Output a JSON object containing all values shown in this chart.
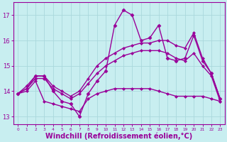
{
  "xlabel": "Windchill (Refroidissement éolien,°C)",
  "xlabel_fontsize": 7.0,
  "background_color": "#c8eef0",
  "grid_color": "#aad8dc",
  "line_color": "#990099",
  "xlim": [
    -0.5,
    23.5
  ],
  "ylim": [
    12.7,
    17.5
  ],
  "xticks": [
    0,
    1,
    2,
    3,
    4,
    5,
    6,
    7,
    8,
    9,
    10,
    11,
    12,
    13,
    14,
    15,
    16,
    17,
    18,
    19,
    20,
    21,
    22,
    23
  ],
  "yticks": [
    13,
    14,
    15,
    16,
    17
  ],
  "series": [
    {
      "x": [
        0,
        1,
        2,
        3,
        4,
        5,
        6,
        7,
        8,
        9,
        10,
        11,
        12,
        13,
        14,
        15,
        16,
        17,
        18,
        19,
        20,
        21,
        22,
        23
      ],
      "y": [
        13.9,
        14.2,
        14.6,
        14.6,
        14.0,
        13.6,
        13.5,
        13.0,
        13.9,
        14.4,
        14.8,
        16.6,
        17.2,
        17.0,
        16.0,
        16.1,
        16.6,
        15.3,
        15.2,
        15.3,
        16.2,
        15.2,
        14.7,
        13.7
      ],
      "marker": "D",
      "markersize": 2.5,
      "linewidth": 1.0
    },
    {
      "x": [
        0,
        1,
        2,
        3,
        4,
        5,
        6,
        7,
        8,
        9,
        10,
        11,
        12,
        13,
        14,
        15,
        16,
        17,
        18,
        19,
        20,
        21,
        22,
        23
      ],
      "y": [
        13.9,
        14.1,
        14.6,
        14.6,
        14.2,
        14.0,
        13.8,
        14.0,
        14.5,
        15.0,
        15.3,
        15.5,
        15.7,
        15.8,
        15.9,
        15.9,
        16.0,
        16.0,
        15.8,
        15.7,
        16.3,
        15.3,
        14.7,
        13.7
      ],
      "marker": "D",
      "markersize": 2.0,
      "linewidth": 1.0
    },
    {
      "x": [
        0,
        1,
        2,
        3,
        4,
        5,
        6,
        7,
        8,
        9,
        10,
        11,
        12,
        13,
        14,
        15,
        16,
        17,
        18,
        19,
        20,
        21,
        22,
        23
      ],
      "y": [
        13.9,
        14.1,
        14.5,
        14.5,
        14.1,
        13.9,
        13.7,
        13.9,
        14.3,
        14.7,
        15.0,
        15.2,
        15.4,
        15.5,
        15.6,
        15.6,
        15.6,
        15.5,
        15.3,
        15.2,
        15.5,
        15.0,
        14.6,
        13.6
      ],
      "marker": "D",
      "markersize": 2.0,
      "linewidth": 1.0
    },
    {
      "x": [
        0,
        1,
        2,
        3,
        4,
        5,
        6,
        7,
        8,
        9,
        10,
        11,
        12,
        13,
        14,
        15,
        16,
        17,
        18,
        19,
        20,
        21,
        22,
        23
      ],
      "y": [
        13.9,
        14.0,
        14.4,
        13.6,
        13.5,
        13.4,
        13.3,
        13.2,
        13.7,
        13.9,
        14.0,
        14.1,
        14.1,
        14.1,
        14.1,
        14.1,
        14.0,
        13.9,
        13.8,
        13.8,
        13.8,
        13.8,
        13.7,
        13.6
      ],
      "marker": "D",
      "markersize": 2.0,
      "linewidth": 1.0
    }
  ]
}
